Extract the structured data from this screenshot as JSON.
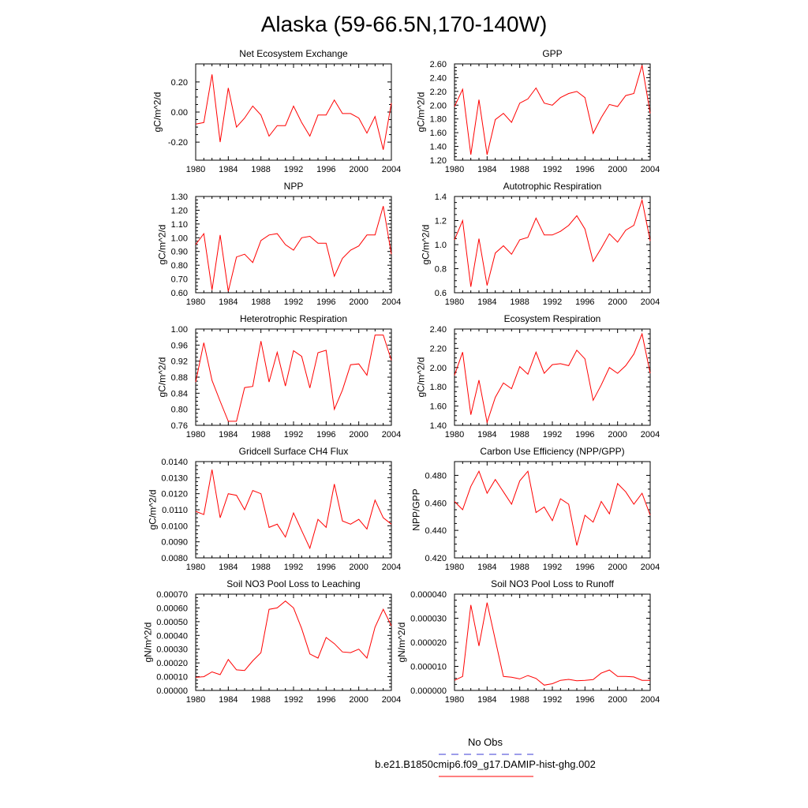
{
  "figure": {
    "title": "Alaska (59-66.5N,170-140W)",
    "legend": [
      {
        "label": "No Obs",
        "color": "#3b3bd6",
        "dash": "dashed"
      },
      {
        "label": "b.e21.B1850cmip6.f09_g17.DAMIP-hist-ghg.002",
        "color": "#ff0000",
        "dash": "solid"
      }
    ]
  },
  "chart_data": [
    {
      "type": "line",
      "title": "Net Ecosystem Exchange",
      "ylabel": "gC/m^2/d",
      "xlim": [
        1980,
        2004
      ],
      "xticks": [
        1980,
        1984,
        1988,
        1992,
        1996,
        2000,
        2004
      ],
      "ylim": [
        -0.32,
        0.32
      ],
      "yticks": [
        "-0.20",
        "0.00",
        "0.20"
      ],
      "ytick_values": [
        -0.2,
        0.0,
        0.2
      ],
      "x": [
        1980,
        1981,
        1982,
        1983,
        1984,
        1985,
        1986,
        1987,
        1988,
        1989,
        1990,
        1991,
        1992,
        1993,
        1994,
        1995,
        1996,
        1997,
        1998,
        1999,
        2000,
        2001,
        2002,
        2003,
        2004
      ],
      "series": [
        {
          "color": "#ff0000",
          "values": [
            -0.08,
            -0.07,
            0.25,
            -0.2,
            0.16,
            -0.1,
            -0.04,
            0.04,
            -0.02,
            -0.16,
            -0.09,
            -0.09,
            0.04,
            -0.07,
            -0.16,
            -0.02,
            -0.02,
            0.08,
            -0.01,
            -0.01,
            -0.04,
            -0.14,
            -0.03,
            -0.25,
            0.06
          ]
        }
      ]
    },
    {
      "type": "line",
      "title": "GPP",
      "ylabel": "gC/m^2/d",
      "xlim": [
        1980,
        2004
      ],
      "xticks": [
        1980,
        1984,
        1988,
        1992,
        1996,
        2000,
        2004
      ],
      "ylim": [
        1.2,
        2.6
      ],
      "yticks": [
        "1.20",
        "1.40",
        "1.60",
        "1.80",
        "2.00",
        "2.20",
        "2.40",
        "2.60"
      ],
      "ytick_values": [
        1.2,
        1.4,
        1.6,
        1.8,
        2.0,
        2.2,
        2.4,
        2.6
      ],
      "x": [
        1980,
        1981,
        1982,
        1983,
        1984,
        1985,
        1986,
        1987,
        1988,
        1989,
        1990,
        1991,
        1992,
        1993,
        1994,
        1995,
        1996,
        1997,
        1998,
        1999,
        2000,
        2001,
        2002,
        2003,
        2004
      ],
      "series": [
        {
          "color": "#ff0000",
          "values": [
            1.98,
            2.23,
            1.28,
            2.08,
            1.28,
            1.79,
            1.88,
            1.75,
            2.03,
            2.09,
            2.25,
            2.03,
            2.0,
            2.11,
            2.17,
            2.2,
            2.11,
            1.59,
            1.82,
            2.01,
            1.98,
            2.14,
            2.17,
            2.58,
            1.88
          ]
        }
      ]
    },
    {
      "type": "line",
      "title": "NPP",
      "ylabel": "gC/m^2/d",
      "xlim": [
        1980,
        2004
      ],
      "xticks": [
        1980,
        1984,
        1988,
        1992,
        1996,
        2000,
        2004
      ],
      "ylim": [
        0.6,
        1.3
      ],
      "yticks": [
        "0.60",
        "0.70",
        "0.80",
        "0.90",
        "1.00",
        "1.10",
        "1.20",
        "1.30"
      ],
      "ytick_values": [
        0.6,
        0.7,
        0.8,
        0.9,
        1.0,
        1.1,
        1.2,
        1.3
      ],
      "x": [
        1980,
        1981,
        1982,
        1983,
        1984,
        1985,
        1986,
        1987,
        1988,
        1989,
        1990,
        1991,
        1992,
        1993,
        1994,
        1995,
        1996,
        1997,
        1998,
        1999,
        2000,
        2001,
        2002,
        2003,
        2004
      ],
      "series": [
        {
          "color": "#ff0000",
          "values": [
            0.95,
            1.03,
            0.62,
            1.02,
            0.61,
            0.86,
            0.88,
            0.82,
            0.98,
            1.02,
            1.03,
            0.95,
            0.91,
            1.0,
            1.01,
            0.96,
            0.96,
            0.72,
            0.85,
            0.91,
            0.94,
            1.02,
            1.02,
            1.23,
            0.88
          ]
        }
      ]
    },
    {
      "type": "line",
      "title": "Autotrophic Respiration",
      "ylabel": "gC/m^2/d",
      "xlim": [
        1980,
        2004
      ],
      "xticks": [
        1980,
        1984,
        1988,
        1992,
        1996,
        2000,
        2004
      ],
      "ylim": [
        0.6,
        1.4
      ],
      "yticks": [
        "0.6",
        "0.8",
        "1.0",
        "1.2",
        "1.4"
      ],
      "ytick_values": [
        0.6,
        0.8,
        1.0,
        1.2,
        1.4
      ],
      "x": [
        1980,
        1981,
        1982,
        1983,
        1984,
        1985,
        1986,
        1987,
        1988,
        1989,
        1990,
        1991,
        1992,
        1993,
        1994,
        1995,
        1996,
        1997,
        1998,
        1999,
        2000,
        2001,
        2002,
        2003,
        2004
      ],
      "series": [
        {
          "color": "#ff0000",
          "values": [
            1.04,
            1.2,
            0.65,
            1.05,
            0.66,
            0.93,
            0.99,
            0.92,
            1.04,
            1.06,
            1.22,
            1.08,
            1.08,
            1.11,
            1.16,
            1.24,
            1.13,
            0.86,
            0.97,
            1.09,
            1.02,
            1.12,
            1.16,
            1.37,
            1.03
          ]
        }
      ]
    },
    {
      "type": "line",
      "title": "Heterotrophic Respiration",
      "ylabel": "gC/m^2/d",
      "xlim": [
        1980,
        2004
      ],
      "xticks": [
        1980,
        1984,
        1988,
        1992,
        1996,
        2000,
        2004
      ],
      "ylim": [
        0.76,
        1.0
      ],
      "yticks": [
        "0.76",
        "0.80",
        "0.84",
        "0.88",
        "0.92",
        "0.96",
        "1.00"
      ],
      "ytick_values": [
        0.76,
        0.8,
        0.84,
        0.88,
        0.92,
        0.96,
        1.0
      ],
      "x": [
        1980,
        1981,
        1982,
        1983,
        1984,
        1985,
        1986,
        1987,
        1988,
        1989,
        1990,
        1991,
        1992,
        1993,
        1994,
        1995,
        1996,
        1997,
        1998,
        1999,
        2000,
        2001,
        2002,
        2003,
        2004
      ],
      "series": [
        {
          "color": "#ff0000",
          "values": [
            0.868,
            0.966,
            0.872,
            0.82,
            0.77,
            0.77,
            0.854,
            0.857,
            0.97,
            0.868,
            0.942,
            0.858,
            0.946,
            0.932,
            0.853,
            0.941,
            0.947,
            0.8,
            0.848,
            0.911,
            0.913,
            0.885,
            0.985,
            0.985,
            0.922
          ]
        }
      ]
    },
    {
      "type": "line",
      "title": "Ecosystem Respiration",
      "ylabel": "gC/m^2/d",
      "xlim": [
        1980,
        2004
      ],
      "xticks": [
        1980,
        1984,
        1988,
        1992,
        1996,
        2000,
        2004
      ],
      "ylim": [
        1.4,
        2.4
      ],
      "yticks": [
        "1.40",
        "1.60",
        "1.80",
        "2.00",
        "2.20",
        "2.40"
      ],
      "ytick_values": [
        1.4,
        1.6,
        1.8,
        2.0,
        2.2,
        2.4
      ],
      "x": [
        1980,
        1981,
        1982,
        1983,
        1984,
        1985,
        1986,
        1987,
        1988,
        1989,
        1990,
        1991,
        1992,
        1993,
        1994,
        1995,
        1996,
        1997,
        1998,
        1999,
        2000,
        2001,
        2002,
        2003,
        2004
      ],
      "series": [
        {
          "color": "#ff0000",
          "values": [
            1.92,
            2.16,
            1.51,
            1.87,
            1.43,
            1.69,
            1.84,
            1.78,
            2.01,
            1.93,
            2.16,
            1.94,
            2.03,
            2.04,
            2.02,
            2.18,
            2.09,
            1.66,
            1.82,
            2.0,
            1.94,
            2.02,
            2.14,
            2.35,
            1.94
          ]
        }
      ]
    },
    {
      "type": "line",
      "title": "Gridcell Surface CH4 Flux",
      "ylabel": "gC/m^2/d",
      "xlim": [
        1980,
        2004
      ],
      "xticks": [
        1980,
        1984,
        1988,
        1992,
        1996,
        2000,
        2004
      ],
      "ylim": [
        0.008,
        0.014
      ],
      "yticks": [
        "0.0080",
        "0.0090",
        "0.0100",
        "0.0110",
        "0.0120",
        "0.0130",
        "0.0140"
      ],
      "ytick_values": [
        0.008,
        0.009,
        0.01,
        0.011,
        0.012,
        0.013,
        0.014
      ],
      "x": [
        1980,
        1981,
        1982,
        1983,
        1984,
        1985,
        1986,
        1987,
        1988,
        1989,
        1990,
        1991,
        1992,
        1993,
        1994,
        1995,
        1996,
        1997,
        1998,
        1999,
        2000,
        2001,
        2002,
        2003,
        2004
      ],
      "series": [
        {
          "color": "#ff0000",
          "values": [
            0.0109,
            0.0107,
            0.0135,
            0.0105,
            0.012,
            0.0119,
            0.011,
            0.0122,
            0.012,
            0.0099,
            0.0101,
            0.0093,
            0.0108,
            0.0097,
            0.0086,
            0.0104,
            0.0099,
            0.0126,
            0.0103,
            0.0101,
            0.0104,
            0.0098,
            0.0116,
            0.0105,
            0.0101
          ]
        }
      ]
    },
    {
      "type": "line",
      "title": "Carbon Use Efficiency (NPP/GPP)",
      "ylabel": "NPP/GPP",
      "xlim": [
        1980,
        2004
      ],
      "xticks": [
        1980,
        1984,
        1988,
        1992,
        1996,
        2000,
        2004
      ],
      "ylim": [
        0.42,
        0.49
      ],
      "yticks": [
        "0.420",
        "0.440",
        "0.460",
        "0.480"
      ],
      "ytick_values": [
        0.42,
        0.44,
        0.46,
        0.48
      ],
      "x": [
        1980,
        1981,
        1982,
        1983,
        1984,
        1985,
        1986,
        1987,
        1988,
        1989,
        1990,
        1991,
        1992,
        1993,
        1994,
        1995,
        1996,
        1997,
        1998,
        1999,
        2000,
        2001,
        2002,
        2003,
        2004
      ],
      "series": [
        {
          "color": "#ff0000",
          "values": [
            0.461,
            0.455,
            0.472,
            0.483,
            0.467,
            0.477,
            0.468,
            0.459,
            0.476,
            0.483,
            0.453,
            0.457,
            0.447,
            0.463,
            0.459,
            0.429,
            0.451,
            0.446,
            0.461,
            0.452,
            0.474,
            0.468,
            0.459,
            0.467,
            0.451
          ]
        }
      ]
    },
    {
      "type": "line",
      "title": "Soil NO3 Pool Loss to Leaching",
      "ylabel": "gN/m^2/d",
      "xlim": [
        1980,
        2004
      ],
      "xticks": [
        1980,
        1984,
        1988,
        1992,
        1996,
        2000,
        2004
      ],
      "ylim": [
        0.0,
        0.0007
      ],
      "yticks": [
        "0.00000",
        "0.00010",
        "0.00020",
        "0.00030",
        "0.00040",
        "0.00050",
        "0.00060",
        "0.00070"
      ],
      "ytick_values": [
        0,
        0.0001,
        0.0002,
        0.0003,
        0.0004,
        0.0005,
        0.0006,
        0.0007
      ],
      "x": [
        1980,
        1981,
        1982,
        1983,
        1984,
        1985,
        1986,
        1987,
        1988,
        1989,
        1990,
        1991,
        1992,
        1993,
        1994,
        1995,
        1996,
        1997,
        1998,
        1999,
        2000,
        2001,
        2002,
        2003,
        2004
      ],
      "series": [
        {
          "color": "#ff0000",
          "values": [
            9.5e-05,
            0.0001,
            0.000135,
            0.000115,
            0.000225,
            0.00015,
            0.000145,
            0.000215,
            0.000275,
            0.00059,
            0.0006,
            0.00065,
            0.0006,
            0.00045,
            0.000265,
            0.000235,
            0.000385,
            0.00034,
            0.00028,
            0.000275,
            0.0003,
            0.000235,
            0.00046,
            0.00059,
            0.00047
          ]
        }
      ]
    },
    {
      "type": "line",
      "title": "Soil NO3 Pool Loss to Runoff",
      "ylabel": "gN/m^2/d",
      "xlim": [
        1980,
        2004
      ],
      "xticks": [
        1980,
        1984,
        1988,
        1992,
        1996,
        2000,
        2004
      ],
      "ylim": [
        0.0,
        4e-05
      ],
      "yticks": [
        "0.000000",
        "0.000010",
        "0.000020",
        "0.000030",
        "0.000040"
      ],
      "ytick_values": [
        0,
        1e-05,
        2e-05,
        3e-05,
        4e-05
      ],
      "x": [
        1980,
        1981,
        1982,
        1983,
        1984,
        1985,
        1986,
        1987,
        1988,
        1989,
        1990,
        1991,
        1992,
        1993,
        1994,
        1995,
        1996,
        1997,
        1998,
        1999,
        2000,
        2001,
        2002,
        2003,
        2004
      ],
      "series": [
        {
          "color": "#ff0000",
          "values": [
            4.2e-06,
            5.8e-06,
            3.55e-05,
            1.85e-05,
            3.65e-05,
            2.1e-05,
            5.8e-06,
            5.5e-06,
            4.8e-06,
            6.2e-06,
            5e-06,
            2.2e-06,
            2.8e-06,
            4.2e-06,
            4.6e-06,
            4e-06,
            4.2e-06,
            4.5e-06,
            7.2e-06,
            8.5e-06,
            5.8e-06,
            5.8e-06,
            5.6e-06,
            4.2e-06,
            4.2e-06
          ]
        }
      ]
    }
  ]
}
